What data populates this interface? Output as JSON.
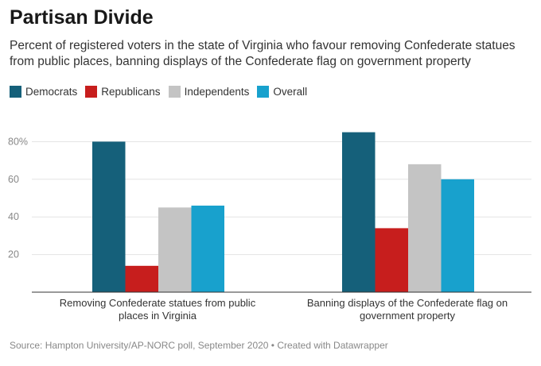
{
  "header": {
    "title": "Partisan Divide",
    "subtitle": "Percent of registered voters in the state of Virginia who favour removing Confederate statues from public places, banning displays of the Confederate flag on government property"
  },
  "footer": {
    "source": "Source: Hampton University/AP-NORC poll, September 2020 • Created with Datawrapper"
  },
  "chart_data": {
    "type": "bar",
    "title": "Partisan Divide",
    "xlabel": "",
    "ylabel": "",
    "ylim": [
      0,
      85
    ],
    "yticks": [
      20,
      40,
      60,
      80
    ],
    "ytick_labels": [
      "20",
      "40",
      "60",
      "80%"
    ],
    "grid": true,
    "legend_position": "top-left",
    "categories": [
      [
        "Removing Confederate statues from public",
        "places in Virginia"
      ],
      [
        "Banning displays of the Confederate flag on",
        "government property"
      ]
    ],
    "series": [
      {
        "name": "Democrats",
        "color": "#15607a",
        "values": [
          80,
          85
        ]
      },
      {
        "name": "Republicans",
        "color": "#c71e1d",
        "values": [
          14,
          34
        ]
      },
      {
        "name": "Independents",
        "color": "#c4c4c4",
        "values": [
          45,
          68
        ]
      },
      {
        "name": "Overall",
        "color": "#18a1cd",
        "values": [
          46,
          60
        ]
      }
    ]
  }
}
